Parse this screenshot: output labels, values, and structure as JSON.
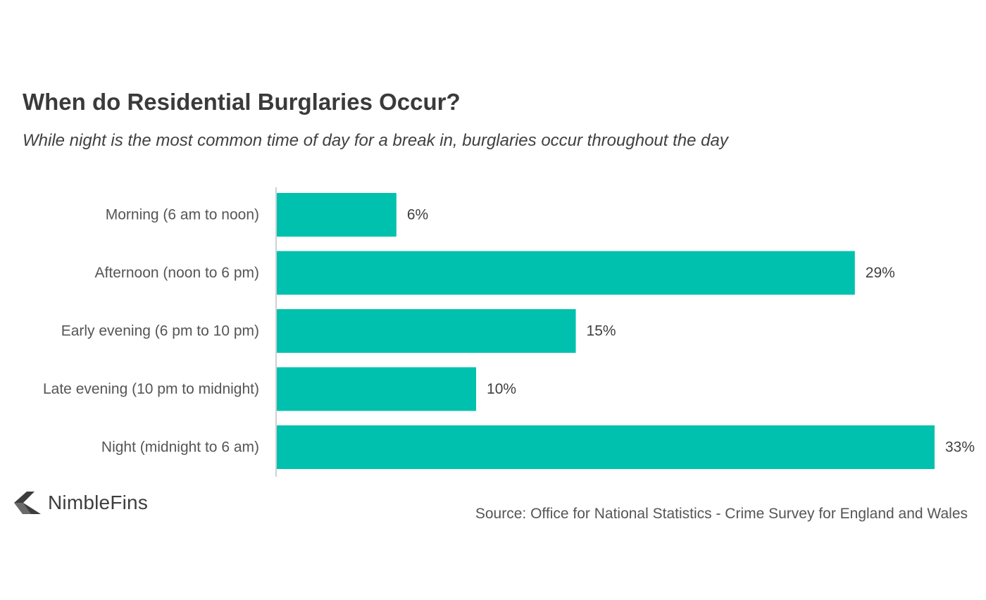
{
  "brand": {
    "name": "NimbleFins",
    "logo_icon": "chevron-arrow-icon"
  },
  "source": "Source: Office for National Statistics - Crime Survey for England and Wales",
  "chart_data": {
    "type": "bar",
    "orientation": "horizontal",
    "title": "When do Residential Burglaries Occur?",
    "subtitle": "While night is the most common time of day for a break in, burglaries occur throughout the day",
    "categories": [
      "Morning (6 am to noon)",
      "Afternoon (noon to 6 pm)",
      "Early evening (6 pm to 10 pm)",
      "Late evening (10 pm to midnight)",
      "Night (midnight to 6 am)"
    ],
    "values": [
      6,
      29,
      15,
      10,
      33
    ],
    "value_labels": [
      "6%",
      "29%",
      "15%",
      "10%",
      "33%"
    ],
    "unit": "%",
    "xlim": [
      0,
      33
    ],
    "grid": false,
    "legend": "none",
    "colors": {
      "bar": "#00C1AE",
      "axis": "#d0d0d0"
    }
  }
}
